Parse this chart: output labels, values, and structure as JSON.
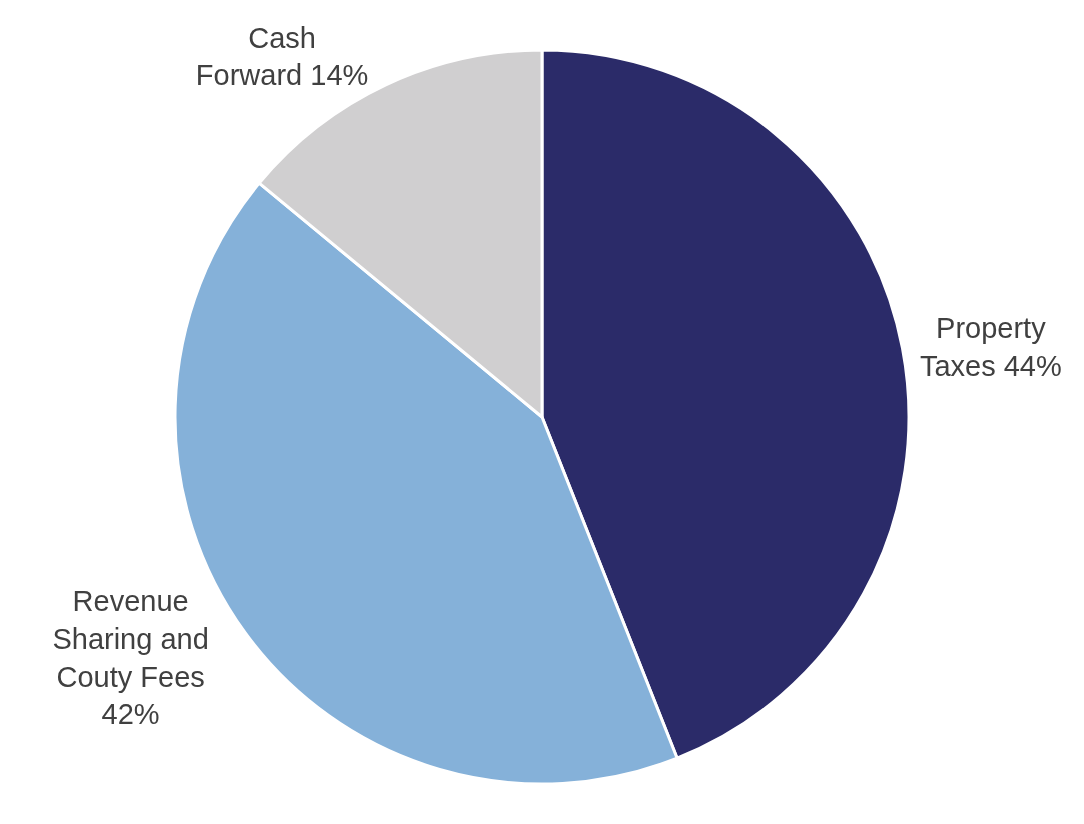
{
  "chart_data": {
    "type": "pie",
    "categories": [
      "Property Taxes",
      "Revenue Sharing and Couty Fees",
      "Cash Forward"
    ],
    "values": [
      44,
      42,
      14
    ],
    "value_labels": [
      "44%",
      "42%",
      "14%"
    ],
    "colors": [
      "#2b2b69",
      "#85b1d9",
      "#d0cfd0"
    ],
    "legend": false
  }
}
